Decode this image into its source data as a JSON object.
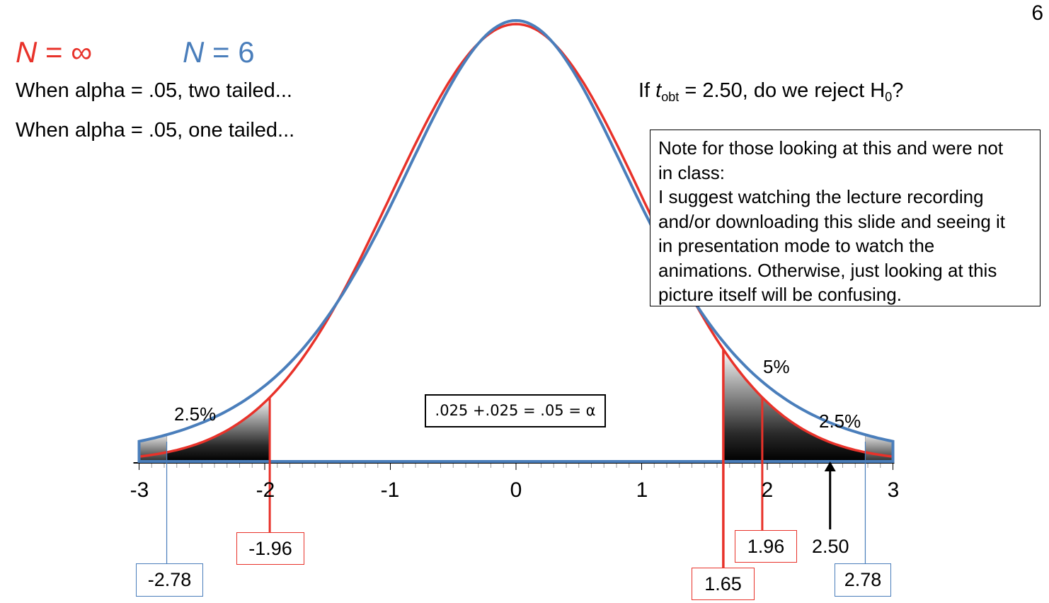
{
  "slide_number": "6",
  "legend": {
    "normal_n": "N",
    "normal_rest": " = ∞",
    "normal_color": "#e8322a",
    "t_n": "N",
    "t_rest": " = 6",
    "t_color": "#4a7ebb"
  },
  "prompts": {
    "two_tailed": "When alpha = .05, two tailed...",
    "one_tailed": "When alpha = .05, one tailed..."
  },
  "question": {
    "prefix": "If ",
    "t": "t",
    "t_sub": "obt",
    "middle": " = 2.50, do we reject H",
    "h_sub": "0",
    "suffix": "?"
  },
  "note": "Note for those looking at this and were not\nin class:\nI suggest watching the lecture recording\nand/or downloading this slide and seeing it\nin presentation mode to watch the\nanimations. Otherwise, just looking at this\npicture itself will be confusing.",
  "alpha_equation": ".025 +.025 = .05 = α",
  "region_labels": {
    "left_tail": "2.5%",
    "one_tail": "5%",
    "right_tail": "2.5%"
  },
  "axis_ticks": [
    "-3",
    "-2",
    "-1",
    "0",
    "1",
    "2",
    "3"
  ],
  "critical_values": {
    "normal_two_left": "-1.96",
    "normal_two_right": "1.96",
    "normal_one": "1.65",
    "t_left": "-2.78",
    "t_right": "2.78",
    "t_obtained": "2.50"
  },
  "chart_data": {
    "type": "line",
    "x_range": [
      -3,
      3
    ],
    "x_ticks": [
      -3,
      -2,
      -1,
      0,
      1,
      2,
      3
    ],
    "series": [
      {
        "name": "N = ∞",
        "distribution": "normal",
        "color": "#e8322a"
      },
      {
        "name": "N = 6",
        "distribution": "t",
        "df": 5,
        "color": "#4a7ebb"
      }
    ],
    "markers": {
      "normal_two_tailed": [
        -1.96,
        1.96
      ],
      "normal_one_tailed": 1.65,
      "t_two_tailed": [
        -2.78,
        2.78
      ],
      "t_obtained": 2.5
    }
  }
}
